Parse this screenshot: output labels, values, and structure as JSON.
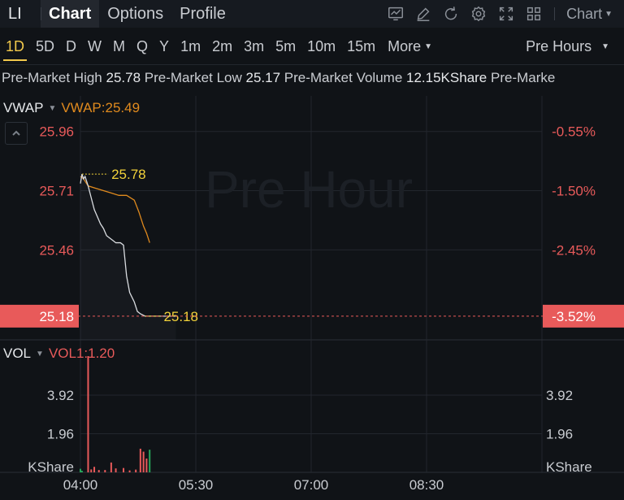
{
  "ticker": "LI",
  "tabs": [
    {
      "label": "Chart",
      "active": true
    },
    {
      "label": "Options"
    },
    {
      "label": "Profile"
    }
  ],
  "toolbar": {
    "chart_type_label": "Chart",
    "icons": [
      "indicator-icon",
      "draw-icon",
      "refresh-icon",
      "settings-icon",
      "fullscreen-icon",
      "layout-icon"
    ]
  },
  "periods": [
    "1D",
    "5D",
    "D",
    "W",
    "M",
    "Q",
    "Y",
    "1m",
    "2m",
    "3m",
    "5m",
    "10m",
    "15m"
  ],
  "active_period": "1D",
  "more_label": "More",
  "session_label": "Pre Hours",
  "stats": {
    "high_label": "Pre-Market High",
    "high_value": "25.78",
    "low_label": "Pre-Market Low",
    "low_value": "25.17",
    "volume_label": "Pre-Market Volume",
    "volume_value": "12.15KShare",
    "trailing_label": "Pre-Marke"
  },
  "indicators": {
    "main_name": "VWAP",
    "main_value": "VWAP:25.49",
    "vol_name": "VOL",
    "vol_value": "VOL1:1.20"
  },
  "colors": {
    "price_line": "#d9dce0",
    "vwap_line": "#e08a1e",
    "up": "#26a65b",
    "down": "#e85a5a",
    "label_yellow": "#f2d23a",
    "current_bg": "#e85a5a",
    "grid": "#22262d"
  },
  "chart_data": {
    "type": "line",
    "watermark": "Pre Hour",
    "x_ticks": [
      "04:00",
      "05:30",
      "07:00",
      "08:30"
    ],
    "price_ticks": [
      "25.96",
      "25.71",
      "25.46"
    ],
    "percent_ticks": [
      "-0.55%",
      "-1.50%",
      "-2.45%"
    ],
    "current_price": "25.18",
    "current_percent": "-3.52%",
    "high_label": "25.78",
    "low_label": "25.18",
    "ylim": [
      25.08,
      26.11
    ],
    "price_series": [
      [
        0,
        25.74
      ],
      [
        1,
        25.78
      ],
      [
        2,
        25.76
      ],
      [
        3,
        25.77
      ],
      [
        4,
        25.75
      ],
      [
        5,
        25.73
      ],
      [
        7,
        25.68
      ],
      [
        9,
        25.63
      ],
      [
        11,
        25.6
      ],
      [
        13,
        25.57
      ],
      [
        15,
        25.55
      ],
      [
        17,
        25.52
      ],
      [
        19,
        25.51
      ],
      [
        21,
        25.5
      ],
      [
        23,
        25.49
      ],
      [
        26,
        25.49
      ],
      [
        28,
        25.48
      ],
      [
        30,
        25.35
      ],
      [
        32,
        25.28
      ],
      [
        35,
        25.24
      ],
      [
        37,
        25.2
      ],
      [
        39,
        25.19
      ],
      [
        42,
        25.18
      ],
      [
        55,
        25.18
      ],
      [
        62,
        25.18
      ]
    ],
    "vwap_series": [
      [
        0,
        25.77
      ],
      [
        2,
        25.76
      ],
      [
        5,
        25.73
      ],
      [
        10,
        25.72
      ],
      [
        15,
        25.71
      ],
      [
        20,
        25.7
      ],
      [
        25,
        25.69
      ],
      [
        30,
        25.69
      ],
      [
        35,
        25.67
      ],
      [
        38,
        25.62
      ],
      [
        41,
        25.56
      ],
      [
        43,
        25.53
      ],
      [
        45,
        25.49
      ]
    ],
    "x_range": [
      0,
      300
    ],
    "vol_ticks": [
      "3.92",
      "1.96"
    ],
    "vol_unit": "KShare",
    "vol_ylim": [
      0,
      5.9
    ],
    "volume": [
      {
        "t": 0,
        "v": 0.18,
        "up": true
      },
      {
        "t": 1,
        "v": 0.08,
        "up": true
      },
      {
        "t": 5,
        "v": 5.9,
        "up": false
      },
      {
        "t": 7,
        "v": 0.15,
        "up": false
      },
      {
        "t": 9,
        "v": 0.28,
        "up": false
      },
      {
        "t": 12,
        "v": 0.12,
        "up": false
      },
      {
        "t": 16,
        "v": 0.12,
        "up": false
      },
      {
        "t": 20,
        "v": 0.5,
        "up": false
      },
      {
        "t": 23,
        "v": 0.2,
        "up": false
      },
      {
        "t": 28,
        "v": 0.22,
        "up": false
      },
      {
        "t": 32,
        "v": 0.1,
        "up": false
      },
      {
        "t": 36,
        "v": 0.14,
        "up": false
      },
      {
        "t": 39,
        "v": 1.2,
        "up": false
      },
      {
        "t": 41,
        "v": 1.05,
        "up": false
      },
      {
        "t": 43,
        "v": 0.7,
        "up": false
      },
      {
        "t": 45,
        "v": 1.15,
        "up": true
      }
    ]
  }
}
